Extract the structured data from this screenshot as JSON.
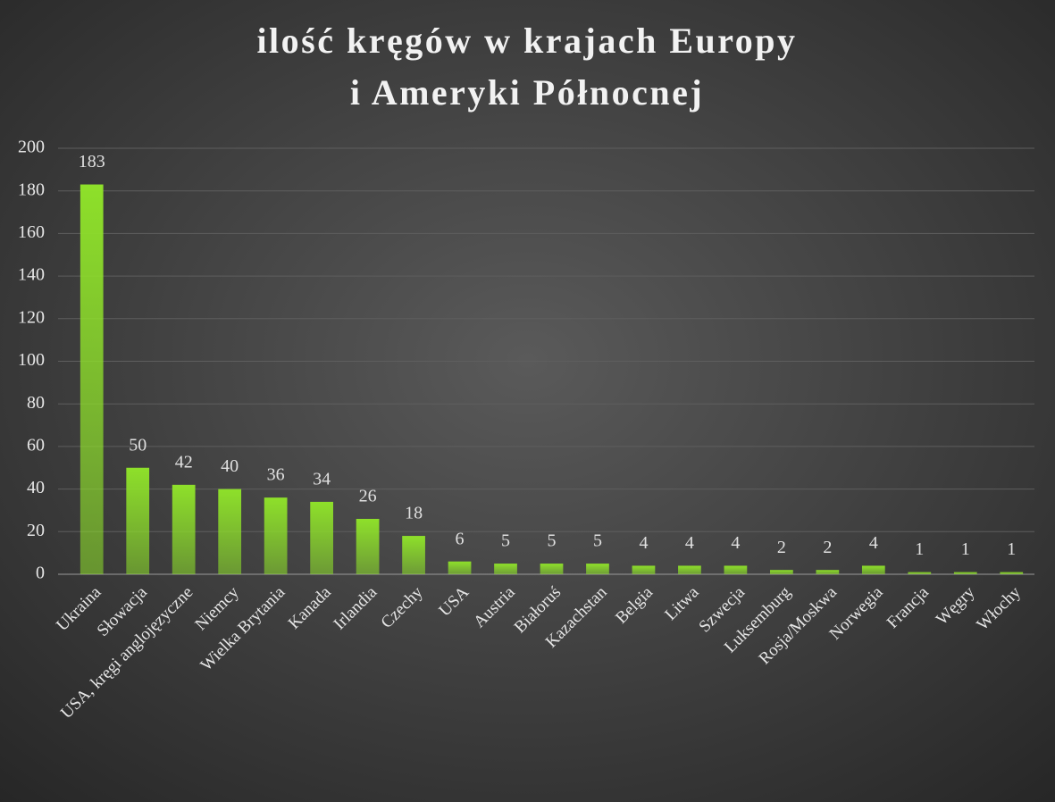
{
  "chart_data": {
    "type": "bar",
    "title": [
      "ilość kręgów w krajach Europy",
      "i Ameryki Północnej"
    ],
    "categories": [
      "Ukraina",
      "Słowacja",
      "USA, kręgi anglojęzyczne",
      "Niemcy",
      "Wielka Brytania",
      "Kanada",
      "Irlandia",
      "Czechy",
      "USA",
      "Austria",
      "Białoruś",
      "Kazachstan",
      "Belgia",
      "Litwa",
      "Szwecja",
      "Luksemburg",
      "Rosja/Moskwa",
      "Norwegia",
      "Francja",
      "Węgry",
      "Włochy"
    ],
    "values": [
      183,
      50,
      42,
      40,
      36,
      34,
      26,
      18,
      6,
      5,
      5,
      5,
      4,
      4,
      4,
      2,
      2,
      4,
      1,
      1,
      1
    ],
    "color": "#8ee02a",
    "ylim": [
      0,
      200
    ],
    "yticks": [
      0,
      20,
      40,
      60,
      80,
      100,
      120,
      140,
      160,
      180,
      200
    ],
    "grid": true
  }
}
